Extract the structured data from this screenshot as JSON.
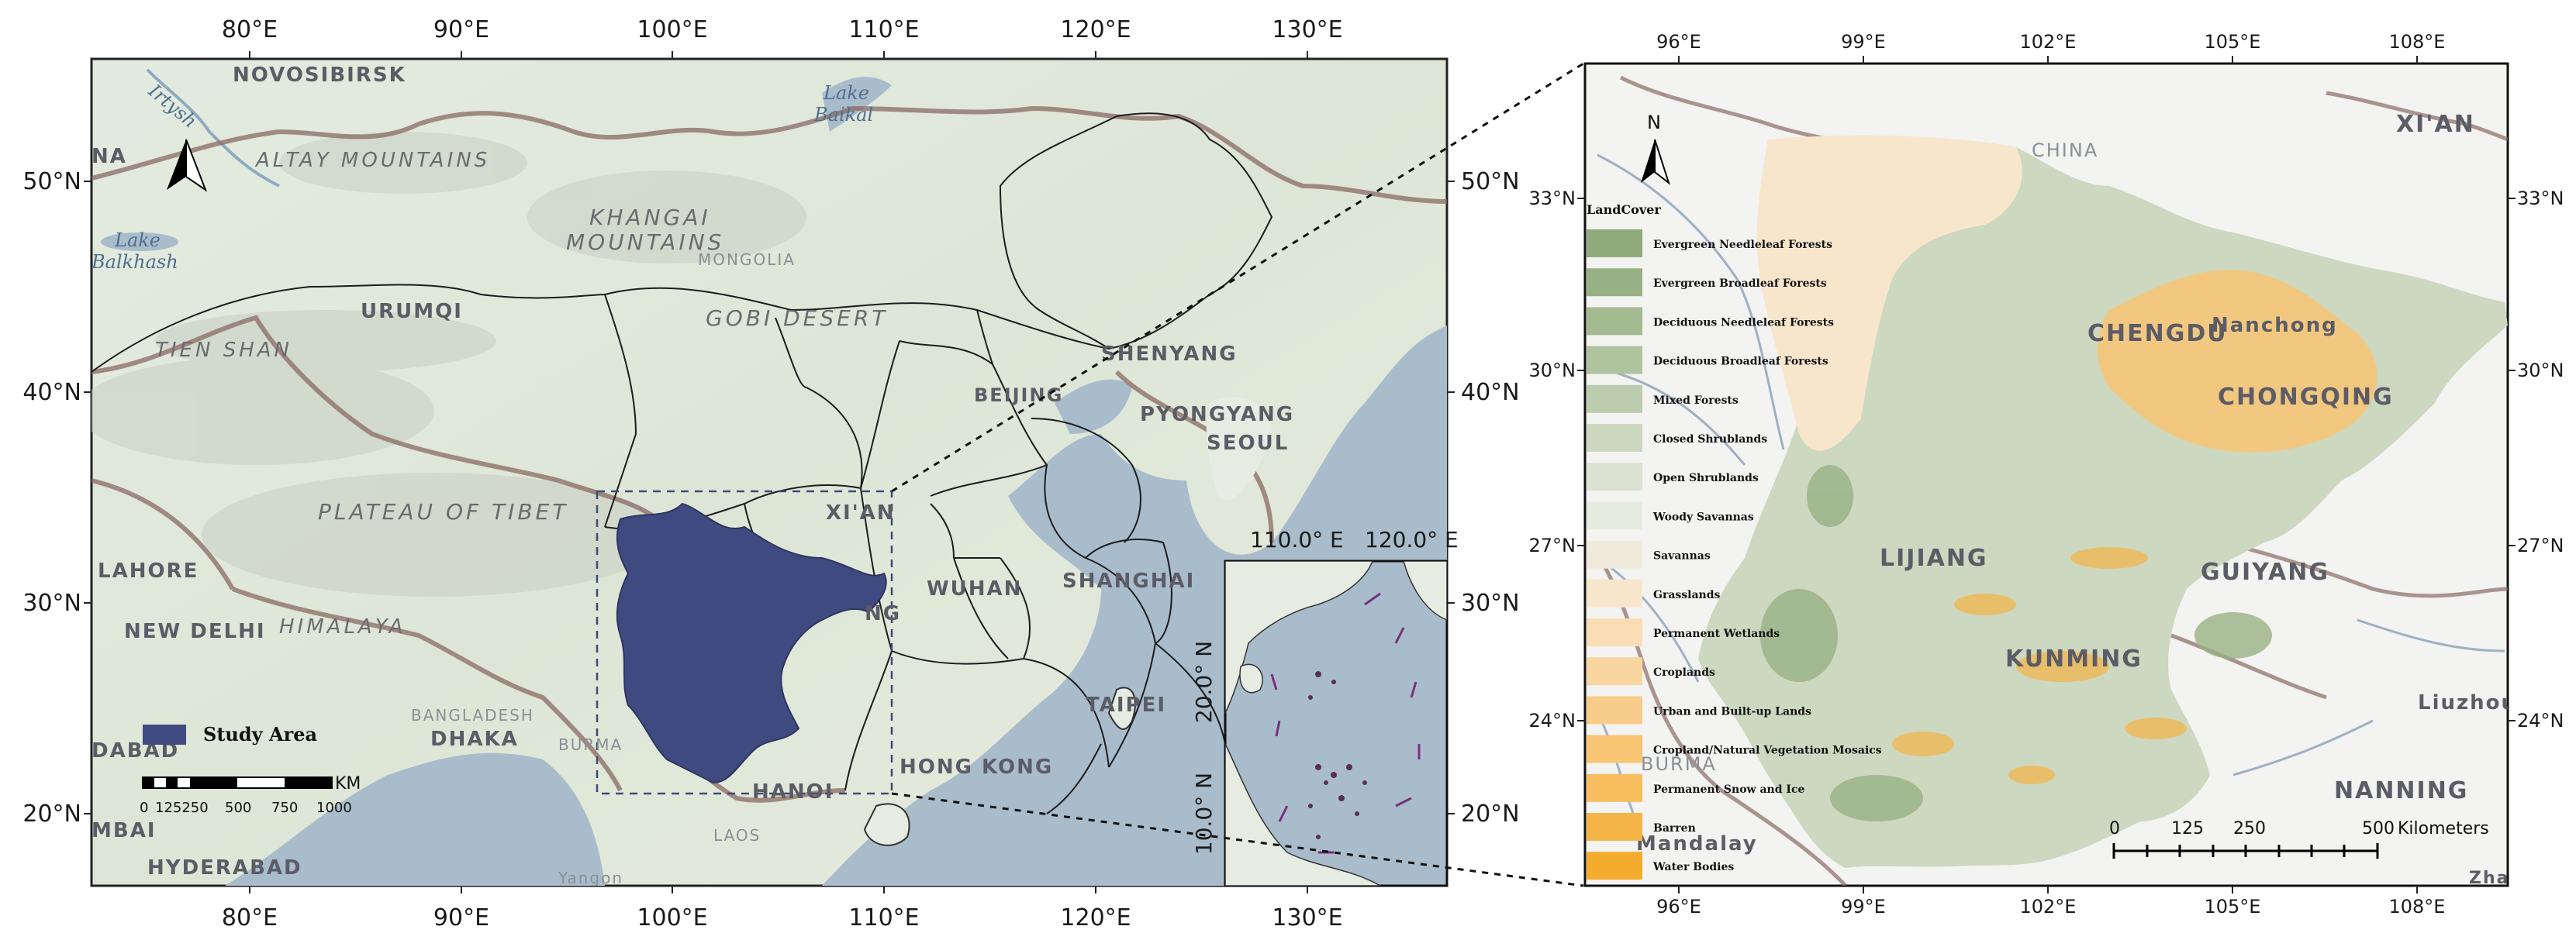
{
  "left_map": {
    "top_lon_labels": [
      "80°E",
      "90°E",
      "100°E",
      "110°E",
      "120°E",
      "130°E"
    ],
    "bottom_lon_labels": [
      "80°E",
      "90°E",
      "100°E",
      "110°E",
      "120°E",
      "130°E"
    ],
    "left_lat_labels": [
      "50°N",
      "40°N",
      "30°N",
      "20°N"
    ],
    "right_lat_labels": [
      "50°N",
      "40°N",
      "30°N",
      "20°N"
    ],
    "places": {
      "novosibirsk": "NOVOSIBIRSK",
      "altay": "ALTAY MOUNTAINS",
      "khangai": "KHANGAI",
      "mountains": "MOUNTAINS",
      "mongolia": "MONGOLIA",
      "gobi": "GOBI DESERT",
      "urumqi": "URUMQI",
      "tien_shan": "TIEN SHAN",
      "shenyang": "SHENYANG",
      "beijing": "BEIJING",
      "pyongyang": "PYONGYANG",
      "seoul": "SEOUL",
      "plateau": "PLATEAU OF TIBET",
      "xian": "XI'AN",
      "wuhan": "WUHAN",
      "shanghai": "SHANGHAI",
      "lahore": "LAHORE",
      "new_delhi": "NEW DELHI",
      "himalaya": "HIMALAYA",
      "bangladesh": "BANGLADESH",
      "dhaka": "DHAKA",
      "burma": "BURMA",
      "taipei": "TAIPEI",
      "hong_kong": "HONG KONG",
      "hanoi": "HANOI",
      "laos": "LAOS",
      "hyderabad": "HYDERABAD",
      "mbai": "MBAI",
      "dabad": "DABAD",
      "na": "NA",
      "yangon": "Yangon",
      "cut_ng": "NG"
    },
    "water": {
      "irtysh": "Irtysh",
      "lake": "Lake",
      "baikal": "Baikal",
      "lake2": "Lake",
      "balkhash": "Balkhash"
    },
    "legend_label": "Study Area",
    "scale_unit": "KM",
    "scale_ticks": [
      "0",
      "125250",
      "500",
      "750",
      "1000"
    ],
    "north": "N"
  },
  "inset": {
    "top_labels": [
      "110.0° E",
      "120.0° E"
    ],
    "lat_labels": [
      "20.0° N",
      "10.0° N"
    ]
  },
  "right_map": {
    "top_lon_labels": [
      "96°E",
      "99°E",
      "102°E",
      "105°E",
      "108°E"
    ],
    "bottom_lon_labels": [
      "96°E",
      "99°E",
      "102°E",
      "105°E",
      "108°E"
    ],
    "left_lat_labels": [
      "33°N",
      "30°N",
      "27°N",
      "24°N"
    ],
    "right_lat_labels": [
      "33°N",
      "30°N",
      "27°N",
      "24°N"
    ],
    "north": "N",
    "places": {
      "xian": "XI'AN",
      "china": "CHINA",
      "chengdu": "CHENGDU",
      "nanchong": "Nanchong",
      "chongqing": "CHONGQING",
      "lijiang": "LIJIANG",
      "guiyang": "GUIYANG",
      "kunming": "KUNMING",
      "liuzhou": "Liuzhou",
      "nanning": "NANNING",
      "burma": "BURMA",
      "mandalay": "Mandalay",
      "zha": "Zha"
    },
    "legend_title": "LandCover",
    "legend_items": [
      {
        "label": "Evergreen Needleleaf Forests",
        "color": "#8faa7b"
      },
      {
        "label": "Evergreen Broadleaf Forests",
        "color": "#98b184"
      },
      {
        "label": "Deciduous Needleleaf Forests",
        "color": "#a4ba91"
      },
      {
        "label": "Deciduous Broadleaf Forests",
        "color": "#b0c39f"
      },
      {
        "label": "Mixed Forests",
        "color": "#bccdad"
      },
      {
        "label": "Closed Shrublands",
        "color": "#cdd8c1"
      },
      {
        "label": "Open Shrublands",
        "color": "#dbe2d1"
      },
      {
        "label": "Woody Savannas",
        "color": "#e6ebdf"
      },
      {
        "label": "Savannas",
        "color": "#efeadb"
      },
      {
        "label": "Grasslands",
        "color": "#f8e6cc"
      },
      {
        "label": "Permanent Wetlands",
        "color": "#f9ddb4"
      },
      {
        "label": "Croplands",
        "color": "#f9d59f"
      },
      {
        "label": "Urban and Built-up Lands",
        "color": "#f8cd8b"
      },
      {
        "label": "Cropland/Natural Vegetation Mosaics",
        "color": "#f8c575"
      },
      {
        "label": "Permanent Snow and Ice",
        "color": "#f7bd5f"
      },
      {
        "label": "Barren",
        "color": "#f5b447"
      },
      {
        "label": "Water Bodies",
        "color": "#f3ac2e"
      }
    ],
    "scale_ticks": [
      "0",
      "125",
      "250",
      "500"
    ],
    "scale_unit": "Kilometers"
  },
  "colors": {
    "study_area": "#3f4a80",
    "water": "#a9bccb",
    "land": "#e6ece2",
    "border": "#8a6a62"
  }
}
